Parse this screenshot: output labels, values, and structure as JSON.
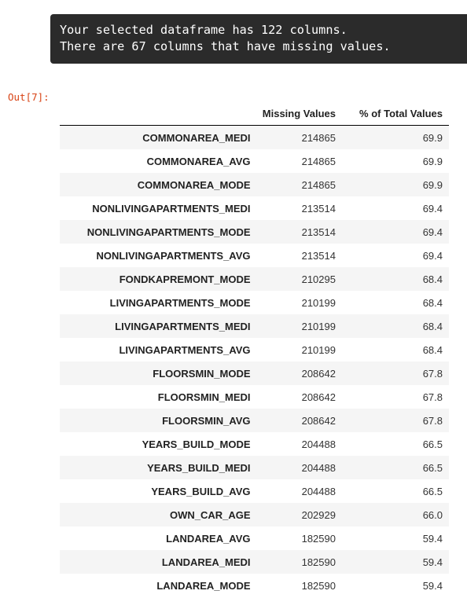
{
  "stream_output": {
    "lines": [
      "Your selected dataframe has 122 columns.",
      "There are 67 columns that have missing values."
    ]
  },
  "output_prompt": "Out[7]:",
  "table": {
    "columns": [
      "",
      "Missing Values",
      "% of Total Values"
    ],
    "rows": [
      {
        "index": "COMMONAREA_MEDI",
        "missing": "214865",
        "percent": "69.9"
      },
      {
        "index": "COMMONAREA_AVG",
        "missing": "214865",
        "percent": "69.9"
      },
      {
        "index": "COMMONAREA_MODE",
        "missing": "214865",
        "percent": "69.9"
      },
      {
        "index": "NONLIVINGAPARTMENTS_MEDI",
        "missing": "213514",
        "percent": "69.4"
      },
      {
        "index": "NONLIVINGAPARTMENTS_MODE",
        "missing": "213514",
        "percent": "69.4"
      },
      {
        "index": "NONLIVINGAPARTMENTS_AVG",
        "missing": "213514",
        "percent": "69.4"
      },
      {
        "index": "FONDKAPREMONT_MODE",
        "missing": "210295",
        "percent": "68.4"
      },
      {
        "index": "LIVINGAPARTMENTS_MODE",
        "missing": "210199",
        "percent": "68.4"
      },
      {
        "index": "LIVINGAPARTMENTS_MEDI",
        "missing": "210199",
        "percent": "68.4"
      },
      {
        "index": "LIVINGAPARTMENTS_AVG",
        "missing": "210199",
        "percent": "68.4"
      },
      {
        "index": "FLOORSMIN_MODE",
        "missing": "208642",
        "percent": "67.8"
      },
      {
        "index": "FLOORSMIN_MEDI",
        "missing": "208642",
        "percent": "67.8"
      },
      {
        "index": "FLOORSMIN_AVG",
        "missing": "208642",
        "percent": "67.8"
      },
      {
        "index": "YEARS_BUILD_MODE",
        "missing": "204488",
        "percent": "66.5"
      },
      {
        "index": "YEARS_BUILD_MEDI",
        "missing": "204488",
        "percent": "66.5"
      },
      {
        "index": "YEARS_BUILD_AVG",
        "missing": "204488",
        "percent": "66.5"
      },
      {
        "index": "OWN_CAR_AGE",
        "missing": "202929",
        "percent": "66.0"
      },
      {
        "index": "LANDAREA_AVG",
        "missing": "182590",
        "percent": "59.4"
      },
      {
        "index": "LANDAREA_MEDI",
        "missing": "182590",
        "percent": "59.4"
      },
      {
        "index": "LANDAREA_MODE",
        "missing": "182590",
        "percent": "59.4"
      }
    ]
  }
}
